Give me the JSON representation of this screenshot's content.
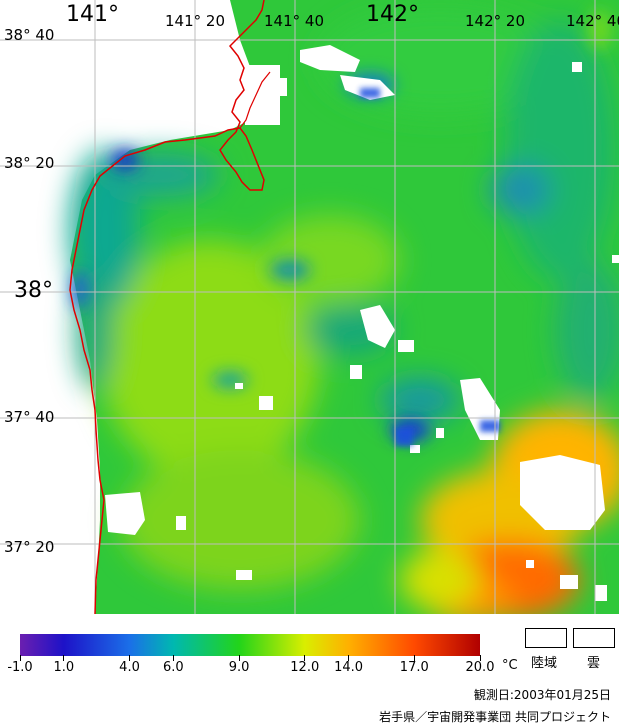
{
  "map": {
    "longitude_labels": [
      "141°",
      "141° 20",
      "141° 40",
      "142°",
      "142° 20",
      "142° 40"
    ],
    "latitude_labels": [
      "38° 40",
      "38° 20",
      "38°",
      "37° 40",
      "37° 20"
    ],
    "coast_color": "#e00000",
    "cloud_color": "#ffffff",
    "grid_color": "#bdbdbd"
  },
  "colorbar": {
    "unit": "°C",
    "tick_labels": [
      "-1.0",
      "1.0",
      "4.0",
      "6.0",
      "9.0",
      "12.0",
      "14.0",
      "17.0",
      "20.0"
    ],
    "stops": [
      {
        "value": -1.0,
        "color": "#6b1fb0"
      },
      {
        "value": 1.0,
        "color": "#1d12c8"
      },
      {
        "value": 4.0,
        "color": "#1b6fe8"
      },
      {
        "value": 6.0,
        "color": "#00b8b0"
      },
      {
        "value": 9.0,
        "color": "#22d41a"
      },
      {
        "value": 12.0,
        "color": "#d9ee00"
      },
      {
        "value": 14.0,
        "color": "#ffb000"
      },
      {
        "value": 17.0,
        "color": "#ff4a00"
      },
      {
        "value": 20.0,
        "color": "#b00000"
      }
    ]
  },
  "legend": {
    "land_label": "陸域",
    "cloud_label": "雲"
  },
  "footer": {
    "observation_date": "観測日:2003年01月25日",
    "credit": "岩手県／宇宙開発事業団 共同プロジェクト"
  }
}
